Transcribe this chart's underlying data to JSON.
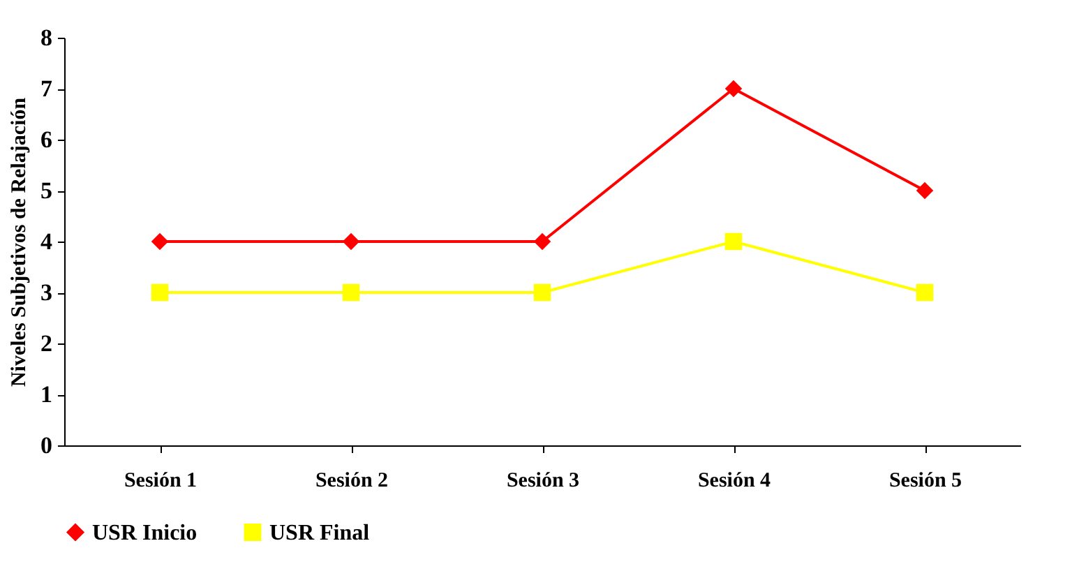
{
  "chart_data": {
    "type": "line",
    "ylabel": "Niveles Subjetivos de Relajación",
    "categories": [
      "Sesión 1",
      "Sesión 2",
      "Sesión 3",
      "Sesión 4",
      "Sesión 5"
    ],
    "series": [
      {
        "name": "USR Inicio",
        "color": "#ff0000",
        "marker": "diamond",
        "values": [
          4,
          4,
          4,
          7,
          5
        ]
      },
      {
        "name": "USR Final",
        "color": "#ffff00",
        "marker": "square",
        "values": [
          3,
          3,
          3,
          4,
          3
        ]
      }
    ],
    "ylim": [
      0,
      8
    ],
    "yticks": [
      0,
      1,
      2,
      3,
      4,
      5,
      6,
      7,
      8
    ],
    "grid": false,
    "legend": "bottom",
    "line_style": "solid"
  }
}
